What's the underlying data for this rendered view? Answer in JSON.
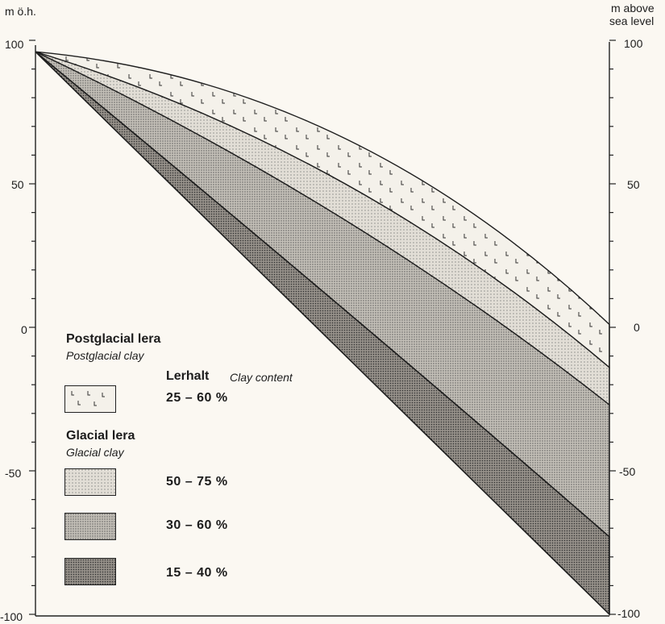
{
  "axes": {
    "left_unit": "m ö.h.",
    "right_unit_line1": "m above",
    "right_unit_line2": "sea level",
    "left_ticks": [
      "100",
      "50",
      "0",
      "-50",
      "-100"
    ],
    "right_ticks": [
      "100",
      "50",
      "0",
      "-50",
      "-100"
    ],
    "ylim": [
      -100,
      100
    ]
  },
  "legend": {
    "postglacial_title": "Postglacial lera",
    "postglacial_subtitle": "Postglacial clay",
    "col_header_bold": "Lerhalt",
    "col_header_italic": "Clay content",
    "postglacial_range": "25 – 60 %",
    "glacial_title": "Glacial lera",
    "glacial_subtitle": "Glacial clay",
    "glacial_ranges": [
      "50 – 75 %",
      "30 – 60 %",
      "15 – 40 %"
    ]
  },
  "fills": {
    "postglacial": "#f4f1ea",
    "glacial_50_75": "#dedad2",
    "glacial_30_60": "#bdb9b1",
    "glacial_15_40": "#8f8b85",
    "outline": "#1e1e1e",
    "background": "#fbf8f2"
  },
  "layers": [
    {
      "name": "postglacial",
      "elev_left": 96,
      "elev_right": 1
    },
    {
      "name": "glacial_50_75",
      "elev_left": 96,
      "elev_right": -14
    },
    {
      "name": "glacial_30_60",
      "elev_left": 96,
      "elev_right": -27
    },
    {
      "name": "glacial_15_40",
      "elev_left": 96,
      "elev_right": -73
    },
    {
      "name": "base",
      "elev_left": 96,
      "elev_right": -100
    }
  ]
}
